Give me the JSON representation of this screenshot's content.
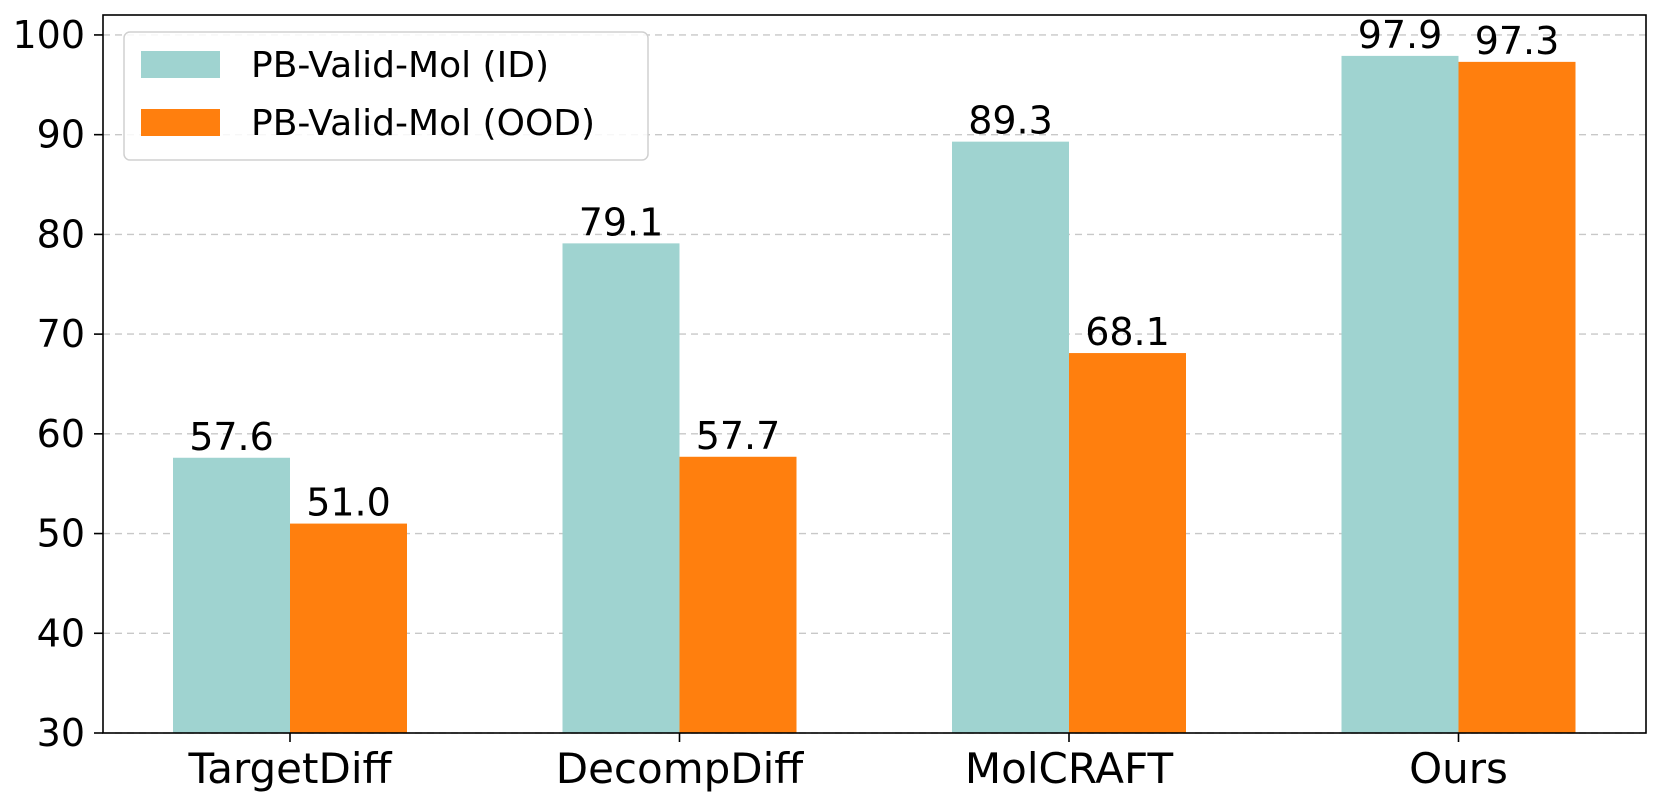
{
  "chart_data": {
    "type": "bar",
    "categories": [
      "TargetDiff",
      "DecompDiff",
      "MolCRAFT",
      "Ours"
    ],
    "series": [
      {
        "name": "PB-Valid-Mol (ID)",
        "values": [
          57.6,
          79.1,
          89.3,
          97.9
        ],
        "color": "#9fd3d0"
      },
      {
        "name": "PB-Valid-Mol (OOD)",
        "values": [
          51.0,
          57.7,
          68.1,
          97.3
        ],
        "color": "#ff7f0e"
      }
    ],
    "value_labels": [
      [
        "57.6",
        "79.1",
        "89.3",
        "97.9"
      ],
      [
        "51.0",
        "57.7",
        "68.1",
        "97.3"
      ]
    ],
    "yticks": [
      30,
      40,
      50,
      60,
      70,
      80,
      90,
      100
    ],
    "ylim": [
      30,
      102
    ],
    "grid": "y-dashed",
    "legend_position": "top-left",
    "title": "",
    "xlabel": "",
    "ylabel": ""
  }
}
